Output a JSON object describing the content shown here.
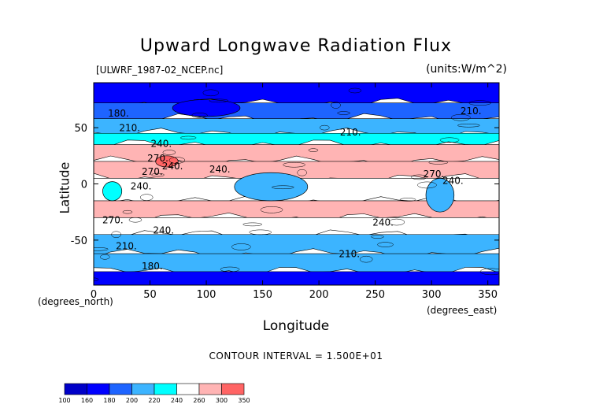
{
  "title": "Upward Longwave Radiation Flux",
  "file_label": "[ULWRF_1987-02_NCEP.nc]",
  "units_label": "(units:W/m^2)",
  "contour_interval": "CONTOUR INTERVAL = 1.500E+01",
  "colors": {
    "c100": "#0000c8",
    "c160": "#0000ff",
    "c180": "#1e64ff",
    "c200": "#3cb4ff",
    "c220": "#00ffff",
    "c240": "#ffffff",
    "c260": "#ffb4b4",
    "c300": "#ff6464",
    "c350": "#ff0000"
  },
  "chart_data": {
    "type": "contour_map",
    "title": "Upward Longwave Radiation Flux",
    "xlabel": "Longitude",
    "ylabel": "Latitude",
    "x_unit_label": "(degrees_east)",
    "y_unit_label": "(degrees_north)",
    "xlim": [
      0,
      360
    ],
    "ylim": [
      -90,
      90
    ],
    "x_ticks": [
      0,
      50,
      100,
      150,
      200,
      250,
      300,
      350
    ],
    "y_ticks": [
      -50,
      0,
      50
    ],
    "contour_interval": 15,
    "contour_labels": [
      {
        "text": "180.",
        "lon": 22,
        "lat": 60
      },
      {
        "text": "210.",
        "lon": 32,
        "lat": 47
      },
      {
        "text": "240.",
        "lon": 60,
        "lat": 33
      },
      {
        "text": "270.",
        "lon": 57,
        "lat": 20
      },
      {
        "text": "270.",
        "lon": 52,
        "lat": 8
      },
      {
        "text": "240.",
        "lon": 42,
        "lat": -5
      },
      {
        "text": "240.",
        "lon": 70,
        "lat": 13
      },
      {
        "text": "240.",
        "lon": 112,
        "lat": 10
      },
      {
        "text": "210.",
        "lon": 228,
        "lat": 43
      },
      {
        "text": "210.",
        "lon": 335,
        "lat": 62
      },
      {
        "text": "270.",
        "lon": 302,
        "lat": 6
      },
      {
        "text": "240.",
        "lon": 319,
        "lat": 0
      },
      {
        "text": "270.",
        "lon": 17,
        "lat": -35
      },
      {
        "text": "240.",
        "lon": 62,
        "lat": -44
      },
      {
        "text": "240.",
        "lon": 257,
        "lat": -37
      },
      {
        "text": "210.",
        "lon": 29,
        "lat": -58
      },
      {
        "text": "210.",
        "lon": 227,
        "lat": -65
      },
      {
        "text": "180.",
        "lon": 52,
        "lat": -76
      }
    ],
    "colorbar": {
      "levels": [
        100,
        160,
        180,
        200,
        220,
        240,
        260,
        300,
        350
      ],
      "labels": [
        "100",
        "160",
        "180",
        "200",
        "220",
        "240",
        "260",
        "300",
        "350"
      ]
    },
    "bands": [
      {
        "lat_from": 90,
        "lat_to": 72,
        "value": 165
      },
      {
        "lat_from": 72,
        "lat_to": 58,
        "value": 185
      },
      {
        "lat_from": 58,
        "lat_to": 45,
        "value": 210
      },
      {
        "lat_from": 45,
        "lat_to": 35,
        "value": 235
      },
      {
        "lat_from": 35,
        "lat_to": 20,
        "value": 285
      },
      {
        "lat_from": 20,
        "lat_to": 5,
        "value": 275
      },
      {
        "lat_from": 5,
        "lat_to": -15,
        "value": 250
      },
      {
        "lat_from": -15,
        "lat_to": -30,
        "value": 280
      },
      {
        "lat_from": -30,
        "lat_to": -45,
        "value": 255
      },
      {
        "lat_from": -45,
        "lat_to": -62,
        "value": 215
      },
      {
        "lat_from": -62,
        "lat_to": -78,
        "value": 205
      },
      {
        "lat_from": -78,
        "lat_to": -90,
        "value": 170
      }
    ],
    "features": [
      {
        "name": "sahara-maximum",
        "lon_from": 55,
        "lon_to": 75,
        "lat_from": 25,
        "lat_to": 15,
        "value": 310
      },
      {
        "name": "africa-convection",
        "lon_from": 8,
        "lon_to": 25,
        "lat_from": 2,
        "lat_to": -15,
        "value": 220
      },
      {
        "name": "indonesia-convection",
        "lon_from": 125,
        "lon_to": 190,
        "lat_from": 10,
        "lat_to": -15,
        "value": 215
      },
      {
        "name": "south-america-convection",
        "lon_from": 295,
        "lon_to": 320,
        "lat_from": 5,
        "lat_to": -25,
        "value": 205
      },
      {
        "name": "siberia-high",
        "lon_from": 70,
        "lon_to": 130,
        "lat_from": 75,
        "lat_to": 60,
        "value": 170
      }
    ]
  }
}
